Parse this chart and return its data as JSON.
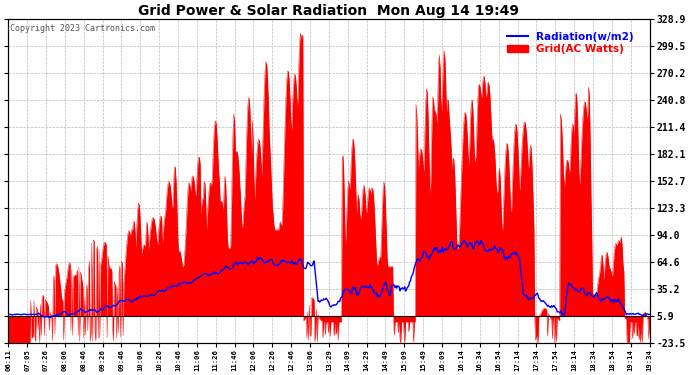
{
  "title": "Grid Power & Solar Radiation  Mon Aug 14 19:49",
  "copyright": "Copyright 2023 Cartronics.com",
  "legend_radiation": "Radiation(w/m2)",
  "legend_grid": "Grid(AC Watts)",
  "yticks": [
    -23.5,
    5.9,
    35.2,
    64.6,
    94.0,
    123.3,
    152.7,
    182.1,
    211.4,
    240.8,
    270.2,
    299.5,
    328.9
  ],
  "ylim": [
    -23.5,
    328.9
  ],
  "bg_color": "#ffffff",
  "plot_bg_color": "#ffffff",
  "grid_color": "#aaaaaa",
  "red_color": "#ff0000",
  "black_color": "#000000",
  "radiation_color": "#0000ff",
  "title_color": "#000000",
  "legend_radiation_label": "Radiation(w/m2)",
  "legend_grid_label": "Grid(AC Watts)",
  "xtick_labels": [
    "06:11",
    "07:05",
    "07:26",
    "08:06",
    "08:46",
    "09:26",
    "09:46",
    "10:06",
    "10:26",
    "10:46",
    "11:06",
    "11:26",
    "11:46",
    "12:06",
    "12:26",
    "12:46",
    "13:06",
    "13:29",
    "14:09",
    "14:29",
    "14:49",
    "15:09",
    "15:49",
    "16:09",
    "16:14",
    "16:34",
    "16:54",
    "17:14",
    "17:34",
    "17:54",
    "18:14",
    "18:34",
    "18:54",
    "19:14",
    "19:34"
  ],
  "baseline": 5.9,
  "n_points": 800,
  "seed": 17
}
